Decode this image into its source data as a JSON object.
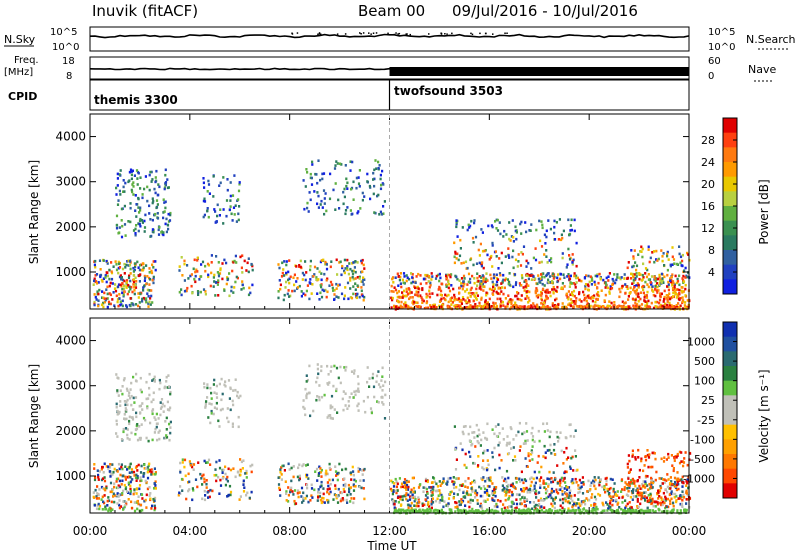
{
  "header": {
    "station": "Inuvik (fitACF)",
    "beam": "Beam 00",
    "dates": "09/Jul/2016 - 10/Jul/2016"
  },
  "rows": {
    "nsky_label": "N.Sky",
    "nsky_ticks": [
      "10^5",
      "10^0"
    ],
    "nsearch_label": "N.Search",
    "nsearch_ticks": [
      "10^5",
      "10^0"
    ],
    "freq_label": "Freq.",
    "freq_unit": "[MHz]",
    "freq_ticks": [
      "18",
      "8"
    ],
    "nave_label": "Nave",
    "nave_ticks": [
      "60",
      "0"
    ],
    "cpid_label": "CPID",
    "cpid_segments": [
      {
        "name": "themis 3300",
        "start_hour": 0
      },
      {
        "name": "twofsound 3503",
        "start_hour": 12
      }
    ]
  },
  "chart_data": [
    {
      "type": "heatmap",
      "name": "power",
      "x_ticks": [
        "00:00",
        "04:00",
        "08:00",
        "12:00",
        "16:00",
        "20:00",
        "00:00"
      ],
      "xlabel": "Time UT",
      "ylabel": "Slant Range [km]",
      "y_ticks": [
        1000,
        2000,
        3000,
        4000
      ],
      "xlim_hours": [
        0,
        24
      ],
      "ylim_km": [
        180,
        4500
      ],
      "colorbar_label": "Power [dB]",
      "colorbar_ticks": [
        "28",
        "24",
        "20",
        "16",
        "12",
        "8",
        "4"
      ],
      "colorbar_colors": [
        "#e00000",
        "#ff4010",
        "#ff7a10",
        "#ff9a00",
        "#e8c800",
        "#b8d040",
        "#60b040",
        "#3a9050",
        "#2a7a60",
        "#3060a0",
        "#2040c0",
        "#1020e0"
      ]
    },
    {
      "type": "heatmap",
      "name": "velocity",
      "x_ticks": [
        "00:00",
        "04:00",
        "08:00",
        "12:00",
        "16:00",
        "20:00",
        "00:00"
      ],
      "xlabel": "Time UT",
      "ylabel": "Slant Range [km]",
      "y_ticks": [
        1000,
        2000,
        3000,
        4000
      ],
      "xlim_hours": [
        0,
        24
      ],
      "ylim_km": [
        180,
        4500
      ],
      "colorbar_label": "Velocity [m s⁻¹]",
      "colorbar_ticks": [
        "1000",
        "500",
        "100",
        "25",
        "-25",
        "-100",
        "-500",
        "-1000"
      ],
      "colorbar_colors": [
        "#1030b0",
        "#2050a0",
        "#2a6a70",
        "#2a8040",
        "#60c040",
        "#c0c0b8",
        "#c0c0b8",
        "#ffc000",
        "#ffa000",
        "#ff7800",
        "#ff4800",
        "#e00000"
      ]
    }
  ]
}
